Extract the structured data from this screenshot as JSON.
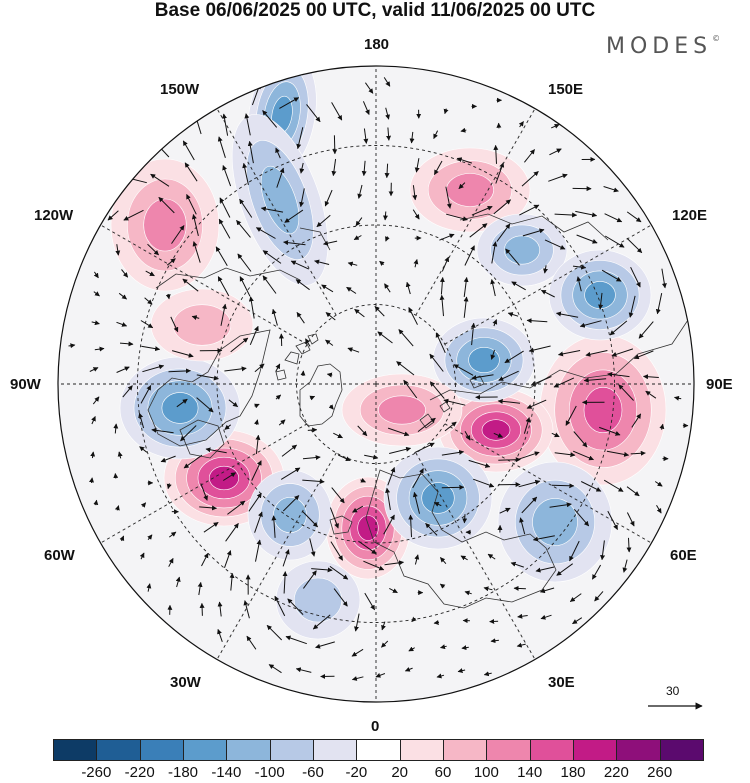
{
  "title": "Base 06/06/2025 00 UTC, valid 11/06/2025 00 UTC",
  "logo": {
    "text": "MODES",
    "mark": "©"
  },
  "longitude_labels": {
    "top": "180",
    "bottom": "0",
    "left": "90W",
    "right": "90E",
    "upper_left_1": "150W",
    "upper_left_2": "120W",
    "upper_right_1": "150E",
    "upper_right_2": "120E",
    "lower_left_1": "60W",
    "lower_left_2": "30W",
    "lower_right_1": "60E",
    "lower_right_2": "30E"
  },
  "vector_scale": {
    "label": "30"
  },
  "colorbar": {
    "ticks": [
      "-260",
      "-220",
      "-180",
      "-140",
      "-100",
      "-60",
      "-20",
      "20",
      "60",
      "100",
      "140",
      "180",
      "220",
      "260"
    ],
    "colors": [
      "#0d3b66",
      "#1f5e95",
      "#3a7fb8",
      "#5c9ccc",
      "#8db6db",
      "#b7c9e6",
      "#e2e3f1",
      "#ffffff",
      "#fbe0e4",
      "#f6b7c6",
      "#ee86ad",
      "#e0509a",
      "#c21b86",
      "#8e0f7a",
      "#5b0a6e"
    ]
  },
  "anomaly_centers": [
    {
      "id": "c1",
      "sign": "neg",
      "level": 3
    },
    {
      "id": "c2",
      "sign": "pos",
      "level": 2
    },
    {
      "id": "c3",
      "sign": "pos",
      "level": 2
    },
    {
      "id": "c4",
      "sign": "neg",
      "level": 2
    },
    {
      "id": "c5",
      "sign": "neg",
      "level": 2
    },
    {
      "id": "c6",
      "sign": "pos",
      "level": 3
    },
    {
      "id": "c7",
      "sign": "neg",
      "level": 3
    },
    {
      "id": "c8",
      "sign": "pos",
      "level": 4
    },
    {
      "id": "c9",
      "sign": "neg",
      "level": 3
    },
    {
      "id": "c10",
      "sign": "pos",
      "level": 4
    },
    {
      "id": "c11",
      "sign": "neg",
      "level": 3
    },
    {
      "id": "c12",
      "sign": "pos",
      "level": 4
    },
    {
      "id": "c13",
      "sign": "neg",
      "level": 3
    },
    {
      "id": "c14",
      "sign": "neg",
      "level": 2
    },
    {
      "id": "c15",
      "sign": "pos",
      "level": 2
    },
    {
      "id": "c16",
      "sign": "neg",
      "level": 2
    },
    {
      "id": "c17",
      "sign": "pos",
      "level": 1
    },
    {
      "id": "c18",
      "sign": "neg",
      "level": 1
    }
  ]
}
